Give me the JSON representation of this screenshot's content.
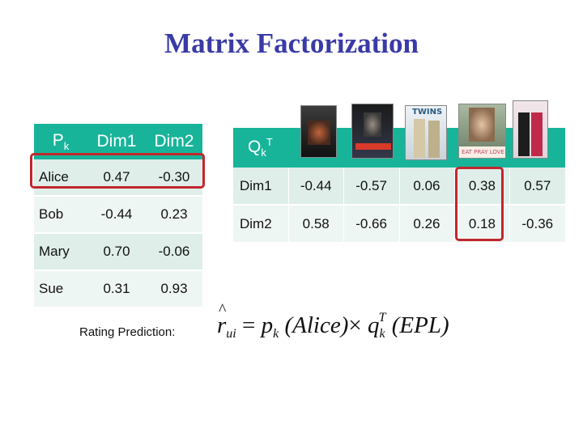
{
  "title": "Matrix Factorization",
  "p_table": {
    "label_main": "P",
    "label_sub": "k",
    "columns": [
      "Dim1",
      "Dim2"
    ],
    "rows": [
      {
        "name": "Alice",
        "dim1": "0.47",
        "dim2": "-0.30"
      },
      {
        "name": "Bob",
        "dim1": "-0.44",
        "dim2": "0.23"
      },
      {
        "name": "Mary",
        "dim1": "0.70",
        "dim2": "-0.06"
      },
      {
        "name": "Sue",
        "dim1": "0.31",
        "dim2": "0.93"
      }
    ]
  },
  "q_table": {
    "label_main": "Q",
    "label_sub": "k",
    "label_sup": "T",
    "rows": [
      {
        "name": "Dim1",
        "values": [
          "-0.44",
          "-0.57",
          "0.06",
          "0.38",
          "0.57"
        ]
      },
      {
        "name": "Dim2",
        "values": [
          "0.58",
          "-0.66",
          "0.26",
          "0.18",
          "-0.36"
        ]
      }
    ]
  },
  "posters": {
    "poster_3_text": "TWINS",
    "poster_4_text": "EAT PRAY LOVE"
  },
  "prediction": {
    "label": "Rating Prediction:",
    "r": "r",
    "r_sub": "ui",
    "eq": "=",
    "p": "p",
    "p_sub": "k",
    "p_arg": "(Alice)",
    "times": "×",
    "q": "q",
    "q_sub": "k",
    "q_sup": "T",
    "q_arg": "(EPL)"
  },
  "colors": {
    "header": "#18b49a",
    "row_shade": "#dfeee9",
    "row_light": "#eef6f3",
    "highlight": "#c1272d",
    "title": "#3a3aa6"
  }
}
